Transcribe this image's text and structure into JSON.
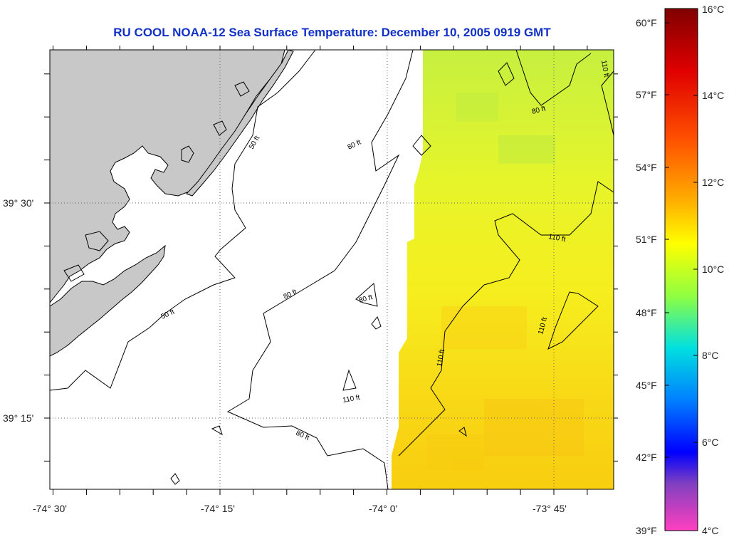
{
  "title": "RU COOL  NOAA-12  Sea Surface Temperature:  December 10, 2005 0919 GMT",
  "map": {
    "lat_ticks": [
      {
        "value": 39.5,
        "label": "39° 30'"
      },
      {
        "value": 39.25,
        "label": "39° 15'"
      }
    ],
    "lon_ticks": [
      {
        "value": -74.5,
        "label": "-74° 30'"
      },
      {
        "value": -74.25,
        "label": "-74° 15'"
      },
      {
        "value": -74.0,
        "label": "-74° 0'"
      },
      {
        "value": -73.75,
        "label": "-73° 45'"
      }
    ],
    "contour_labels": {
      "c50": "50 ft",
      "c80": "80 ft",
      "c110": "110 ft"
    },
    "colors": {
      "land": "#c8c8c8",
      "sst_north": "#c8f040",
      "sst_mid": "#f0f020",
      "sst_south": "#f8d010"
    }
  },
  "colorbar": {
    "celsius_labels": [
      "16°C",
      "14°C",
      "12°C",
      "10°C",
      "8°C",
      "6°C",
      "4°C"
    ],
    "fahrenheit_labels": [
      "60°F",
      "57°F",
      "54°F",
      "51°F",
      "48°F",
      "45°F",
      "42°F",
      "39°F"
    ]
  }
}
